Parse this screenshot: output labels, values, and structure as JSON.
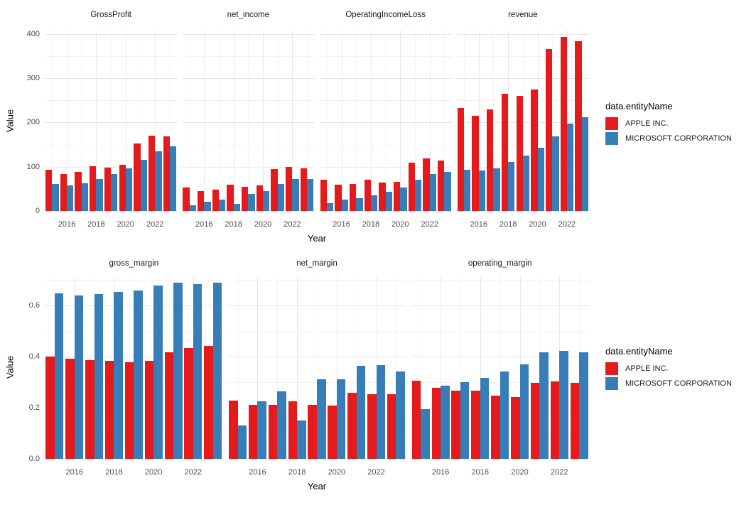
{
  "legend": {
    "title": "data.entityName",
    "entries": [
      {
        "label": "APPLE INC.",
        "color": "#E41A1C"
      },
      {
        "label": "MICROSOFT CORPORATION",
        "color": "#377EB8"
      }
    ]
  },
  "colors": {
    "apple": "#E41A1C",
    "microsoft": "#377EB8",
    "grid_major": "#E7E7E7",
    "grid_minor": "#F3F3F3",
    "tick_text": "#4D4D4D",
    "strip_text": "#1A1A1A",
    "axis_title_text": "#000000",
    "background": "#FFFFFF"
  },
  "chart_data": [
    {
      "type": "bar",
      "facet_row": "top",
      "xlabel": "Year",
      "ylabel": "Value",
      "x": [
        2015,
        2016,
        2017,
        2018,
        2019,
        2020,
        2021,
        2022,
        2023
      ],
      "x_ticks": [
        2016,
        2018,
        2020,
        2022
      ],
      "x_tick_labels": [
        "2016",
        "2018",
        "2020",
        "2022"
      ],
      "y_ticks": [
        0,
        100,
        200,
        300,
        400
      ],
      "y_tick_labels": [
        "0",
        "100",
        "200",
        "300",
        "400"
      ],
      "ylim": [
        0,
        408
      ],
      "grid": true,
      "legend_position": "right",
      "panels": [
        {
          "title": "GrossProfit",
          "series": [
            {
              "name": "APPLE INC.",
              "values": [
                93.6,
                84.3,
                88.2,
                101.8,
                98.4,
                105.0,
                152.8,
                170.8,
                169.1
              ]
            },
            {
              "name": "MICROSOFT CORPORATION",
              "values": [
                60.5,
                58.4,
                62.3,
                72.0,
                82.9,
                96.9,
                115.9,
                135.6,
                146.1
              ]
            }
          ]
        },
        {
          "title": "net_income",
          "series": [
            {
              "name": "APPLE INC.",
              "values": [
                53.4,
                45.7,
                48.4,
                59.5,
                55.3,
                57.4,
                94.7,
                99.8,
                97.0
              ]
            },
            {
              "name": "MICROSOFT CORPORATION",
              "values": [
                12.2,
                20.5,
                25.5,
                16.6,
                39.2,
                44.3,
                61.3,
                72.7,
                72.4
              ]
            }
          ]
        },
        {
          "title": "OperatingIncomeLoss",
          "series": [
            {
              "name": "APPLE INC.",
              "values": [
                71.2,
                60.0,
                61.3,
                70.9,
                63.9,
                66.3,
                108.9,
                119.4,
                114.3
              ]
            },
            {
              "name": "MICROSOFT CORPORATION",
              "values": [
                18.2,
                26.1,
                29.0,
                35.1,
                43.0,
                53.0,
                69.9,
                83.4,
                88.5
              ]
            }
          ]
        },
        {
          "title": "revenue",
          "series": [
            {
              "name": "APPLE INC.",
              "values": [
                233.7,
                215.6,
                229.2,
                265.6,
                260.2,
                274.5,
                365.8,
                394.3,
                383.3
              ]
            },
            {
              "name": "MICROSOFT CORPORATION",
              "values": [
                93.6,
                91.2,
                96.6,
                110.4,
                125.8,
                143.0,
                168.1,
                198.3,
                211.9
              ]
            }
          ]
        }
      ]
    },
    {
      "type": "bar",
      "facet_row": "bottom",
      "xlabel": "Year",
      "ylabel": "Value",
      "x": [
        2015,
        2016,
        2017,
        2018,
        2019,
        2020,
        2021,
        2022,
        2023
      ],
      "x_ticks": [
        2016,
        2018,
        2020,
        2022
      ],
      "x_tick_labels": [
        "2016",
        "2018",
        "2020",
        "2022"
      ],
      "y_ticks": [
        0,
        0.2,
        0.4,
        0.6
      ],
      "y_tick_labels": [
        "0.0",
        "0.2",
        "0.4",
        "0.6"
      ],
      "ylim": [
        0,
        0.7166
      ],
      "grid": true,
      "legend_position": "right",
      "panels": [
        {
          "title": "gross_margin",
          "series": [
            {
              "name": "APPLE INC.",
              "values": [
                0.401,
                0.391,
                0.385,
                0.383,
                0.378,
                0.382,
                0.418,
                0.433,
                0.441
              ]
            },
            {
              "name": "MICROSOFT CORPORATION",
              "values": [
                0.647,
                0.64,
                0.645,
                0.652,
                0.659,
                0.678,
                0.689,
                0.684,
                0.689
              ]
            }
          ]
        },
        {
          "title": "net_margin",
          "series": [
            {
              "name": "APPLE INC.",
              "values": [
                0.228,
                0.212,
                0.211,
                0.224,
                0.212,
                0.209,
                0.259,
                0.253,
                0.253
              ]
            },
            {
              "name": "MICROSOFT CORPORATION",
              "values": [
                0.13,
                0.225,
                0.264,
                0.15,
                0.312,
                0.31,
                0.365,
                0.367,
                0.342
              ]
            }
          ]
        },
        {
          "title": "operating_margin",
          "series": [
            {
              "name": "APPLE INC.",
              "values": [
                0.305,
                0.278,
                0.268,
                0.267,
                0.246,
                0.241,
                0.298,
                0.303,
                0.298
              ]
            },
            {
              "name": "MICROSOFT CORPORATION",
              "values": [
                0.194,
                0.286,
                0.301,
                0.318,
                0.341,
                0.37,
                0.416,
                0.421,
                0.418
              ]
            }
          ]
        }
      ]
    }
  ]
}
